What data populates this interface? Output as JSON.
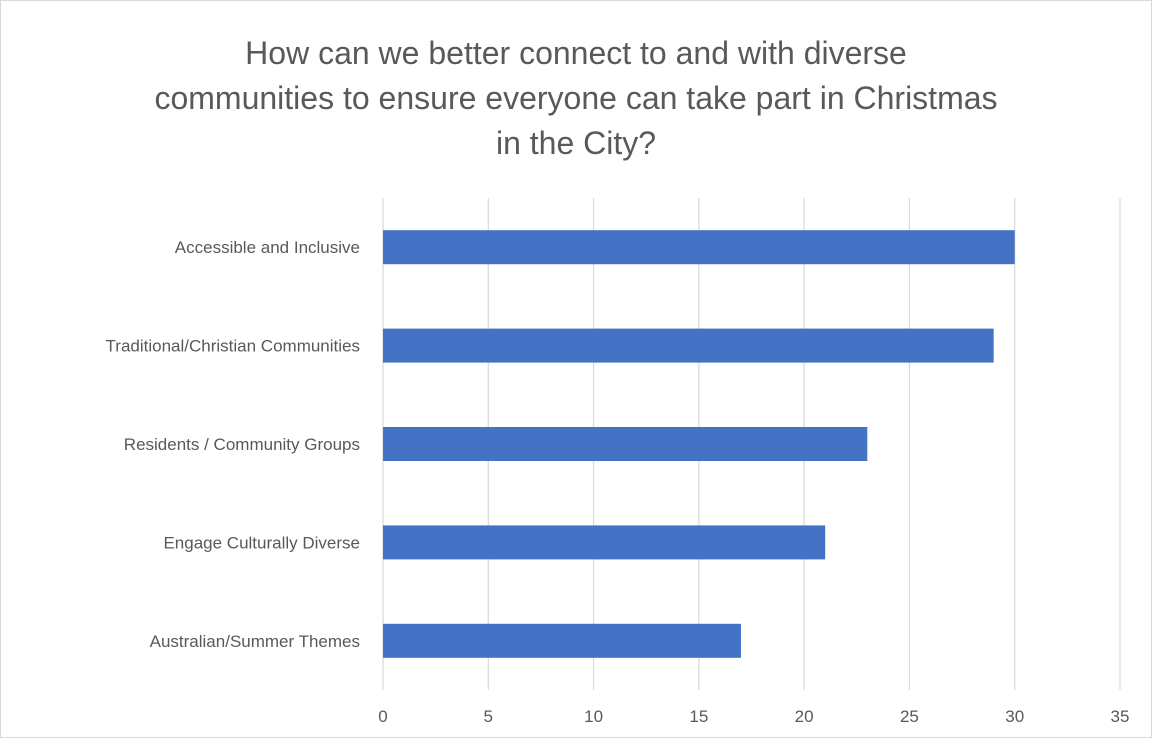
{
  "chart_data": {
    "type": "bar",
    "orientation": "horizontal",
    "title_lines": [
      "How can we better connect to and with diverse",
      "communities to ensure everyone can take part in Christmas",
      "in the City?"
    ],
    "categories": [
      "Accessible and Inclusive",
      "Traditional/Christian Communities",
      "Residents / Community Groups",
      "Engage Culturally Diverse",
      "Australian/Summer Themes"
    ],
    "values": [
      30,
      29,
      23,
      21,
      17
    ],
    "xlim": [
      0,
      35
    ],
    "x_ticks": [
      "0",
      "5",
      "10",
      "15",
      "20",
      "25",
      "30",
      "35"
    ],
    "grid": "vertical",
    "bar_color": "#4472C4",
    "grid_color": "#d9d9d9",
    "text_color": "#595959"
  }
}
